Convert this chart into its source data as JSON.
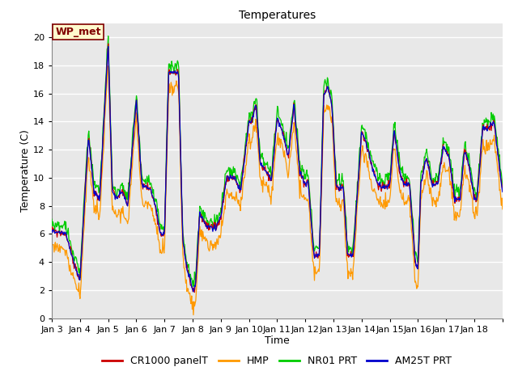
{
  "title": "Temperatures",
  "xlabel": "Time",
  "ylabel": "Temperature (C)",
  "ylim": [
    0,
    21
  ],
  "yticks": [
    0,
    2,
    4,
    6,
    8,
    10,
    12,
    14,
    16,
    18,
    20
  ],
  "xtick_labels": [
    "Jan 3",
    "Jan 4",
    "Jan 5",
    "Jan 6",
    "Jan 7",
    "Jan 8",
    "Jan 9",
    "Jan 10",
    "Jan 11",
    "Jan 12",
    "Jan 13",
    "Jan 14",
    "Jan 15",
    "Jan 16",
    "Jan 17",
    "Jan 18"
  ],
  "annotation_text": "WP_met",
  "series_colors": {
    "CR1000 panelT": "#cc0000",
    "HMP": "#ff9900",
    "NR01 PRT": "#00cc00",
    "AM25T PRT": "#0000cc"
  },
  "bg_color": "#e8e8e8",
  "grid_color": "#ffffff",
  "fig_bg_color": "#ffffff",
  "title_fontsize": 10,
  "label_fontsize": 9,
  "tick_fontsize": 8,
  "legend_fontsize": 9,
  "annot_fontsize": 9
}
